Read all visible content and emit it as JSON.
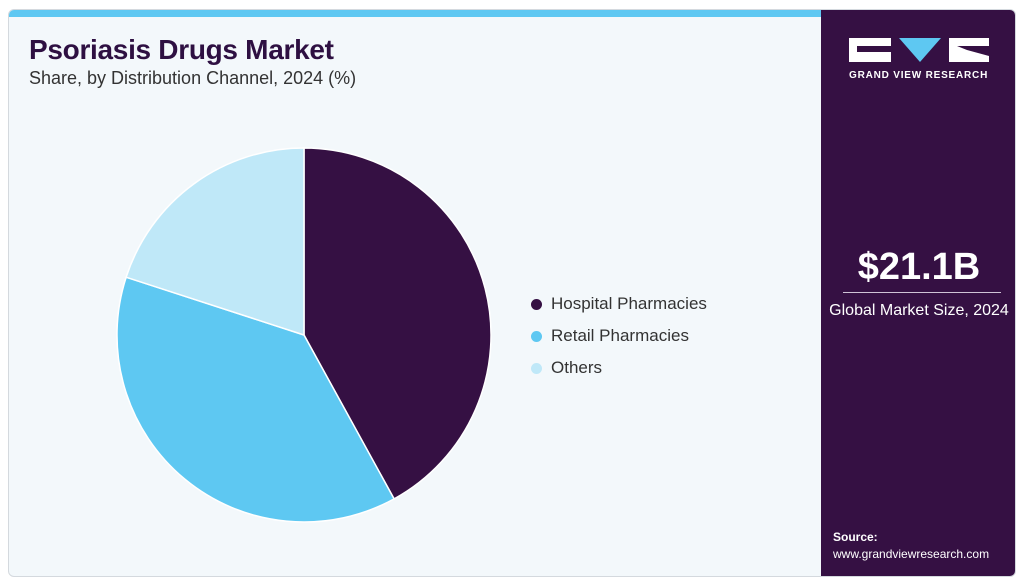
{
  "header": {
    "title": "Psoriasis Drugs Market",
    "subtitle": "Share, by Distribution Channel, 2024 (%)"
  },
  "colors": {
    "hospital": "#351043",
    "retail": "#5ec8f2",
    "others": "#bfe8f8",
    "accent_bar": "#5ec8f2",
    "panel": "#351043"
  },
  "chart_data": {
    "type": "pie",
    "categories": [
      "Hospital Pharmacies",
      "Retail Pharmacies",
      "Others"
    ],
    "values": [
      42,
      38,
      20
    ],
    "start_angle_deg": 0,
    "direction": "clockwise",
    "legend_position": "right"
  },
  "side_panel": {
    "logo_text": "GRAND VIEW RESEARCH",
    "market_size": "$21.1B",
    "market_size_label": "Global Market Size, 2024",
    "source_label": "Source:",
    "source_url": "www.grandviewresearch.com"
  }
}
